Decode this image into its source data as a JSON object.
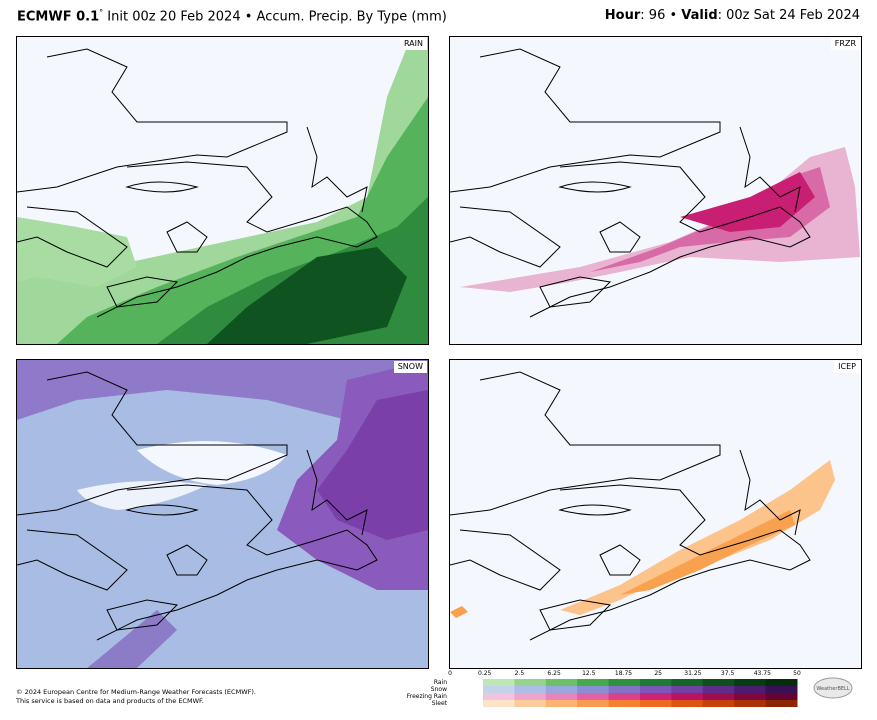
{
  "header": {
    "model": "ECMWF 0.1",
    "model_sup": "°",
    "init": " Init 00z 20 Feb 2024 • Accum. Precip. By Type (mm)",
    "hour_label": "Hour",
    "hour_value": ": 96 • ",
    "valid_label": "Valid",
    "valid_value": ": 00z Sat 24 Feb 2024"
  },
  "panels": [
    {
      "id": "rain",
      "tag": "RAIN",
      "color": "#2e8b3a"
    },
    {
      "id": "frzr",
      "tag": "FRZR",
      "color": "#d63384"
    },
    {
      "id": "snow",
      "tag": "SNOW",
      "color": "#7f4fa8"
    },
    {
      "id": "icep",
      "tag": "ICEP",
      "color": "#f5a14d"
    }
  ],
  "legend": {
    "ticks": [
      "0",
      "0.25",
      "2.5",
      "6.25",
      "12.5",
      "18.75",
      "25",
      "31.25",
      "37.5",
      "43.75",
      "50"
    ],
    "rows": [
      "Rain",
      "Snow",
      "Freezing Rain",
      "Sleet"
    ],
    "rain_colors": [
      "#bde7b7",
      "#95d48e",
      "#6cc06a",
      "#46a94d",
      "#2d9140",
      "#1f7a33",
      "#156428",
      "#0d501e",
      "#073c15",
      "#042c0d"
    ],
    "snow_colors": [
      "#c5d3ea",
      "#aebde6",
      "#9aa7de",
      "#8a8fd4",
      "#8472c6",
      "#7d57b8",
      "#7241a4",
      "#5f2c8a",
      "#4c1c70",
      "#3a1157"
    ],
    "frzr_colors": [
      "#f3c2dc",
      "#eea5cb",
      "#e784b8",
      "#e063a3",
      "#d8418d",
      "#cc2377",
      "#b71564",
      "#9c0d51",
      "#800840",
      "#650432"
    ],
    "sleet_colors": [
      "#fde3c7",
      "#fccb9c",
      "#fbb272",
      "#f89a4f",
      "#f5812f",
      "#ee6a1e",
      "#dd5412",
      "#c5420b",
      "#a93306",
      "#8b2603"
    ]
  },
  "footer": {
    "line1": "© 2024 European Centre for Medium-Range Weather Forecasts (ECMWF).",
    "line2": "This service is based on data and products of the ECMWF."
  },
  "logo": {
    "text": "WeatherBELL"
  }
}
